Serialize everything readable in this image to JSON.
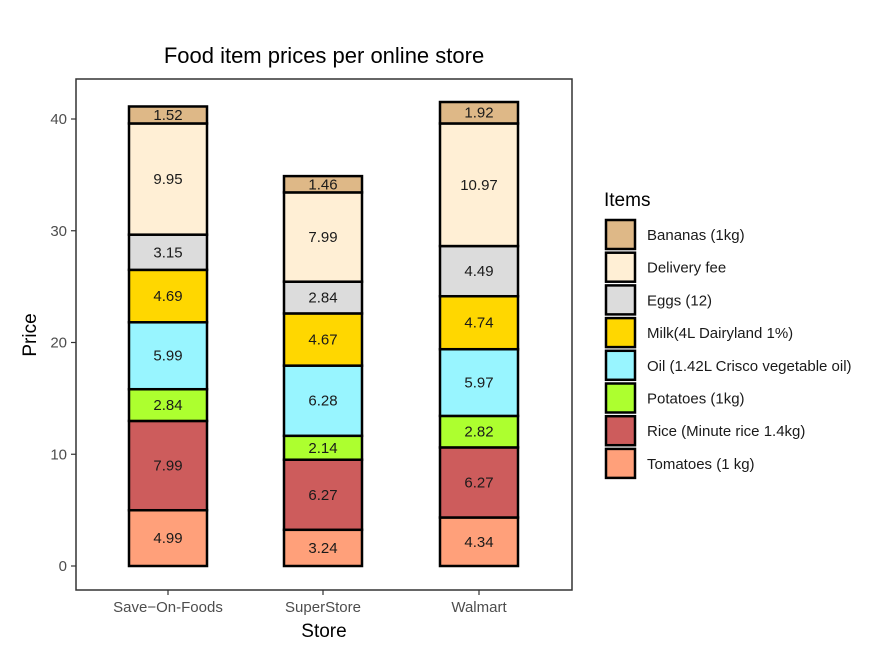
{
  "chart_data": {
    "type": "bar",
    "stacked": true,
    "title": "Food item prices per online store",
    "xlabel": "Store",
    "ylabel": "Price",
    "ylim": [
      0,
      41.5
    ],
    "yticks": [
      0,
      10,
      20,
      30,
      40
    ],
    "categories": [
      "Save-On-Foods",
      "SuperStore",
      "Walmart"
    ],
    "legend_title": "Items",
    "legend_position": "right",
    "series": [
      {
        "name": "Tomatoes (1 kg)",
        "color": "#FFA07A",
        "values": [
          4.99,
          3.24,
          4.34
        ]
      },
      {
        "name": "Rice (Minute rice 1.4kg)",
        "color": "#CD5C5C",
        "values": [
          7.99,
          6.27,
          6.27
        ]
      },
      {
        "name": "Potatoes (1kg)",
        "color": "#ADFF2F",
        "values": [
          2.84,
          2.14,
          2.82
        ]
      },
      {
        "name": "Oil (1.42L Crisco vegetable oil)",
        "color": "#98F5FF",
        "values": [
          5.99,
          6.28,
          5.97
        ]
      },
      {
        "name": "Milk(4L Dairyland 1%)",
        "color": "#FFD700",
        "values": [
          4.69,
          4.67,
          4.74
        ]
      },
      {
        "name": "Eggs (12)",
        "color": "#DCDCDC",
        "values": [
          3.15,
          2.84,
          4.49
        ]
      },
      {
        "name": "Delivery fee",
        "color": "#FFEFD5",
        "values": [
          9.95,
          7.99,
          10.97
        ]
      },
      {
        "name": "Bananas (1kg)",
        "color": "#DEB887",
        "values": [
          1.52,
          1.46,
          1.92
        ]
      }
    ]
  }
}
